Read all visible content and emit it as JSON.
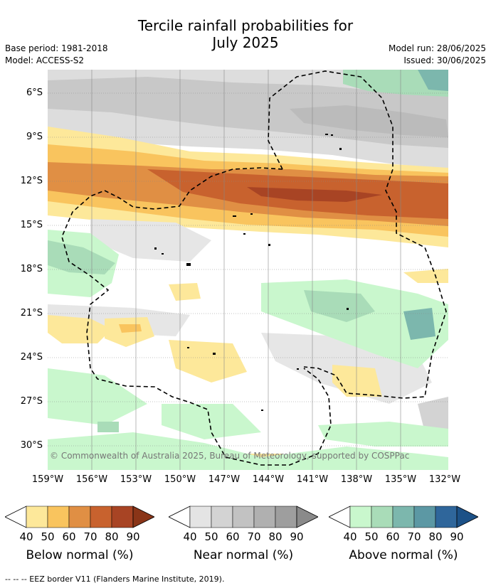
{
  "title_line1": "Tercile rainfall probabilities for",
  "title_line2": "July 2025",
  "meta_left": {
    "base_period": "Base period: 1981-2018",
    "model": "Model: ACCESS-S2"
  },
  "meta_right": {
    "model_run": "Model run: 28/06/2025",
    "issued": "Issued: 30/06/2025"
  },
  "lat_labels": [
    "6°S",
    "9°S",
    "12°S",
    "15°S",
    "18°S",
    "21°S",
    "24°S",
    "27°S",
    "30°S"
  ],
  "lon_labels": [
    "159°W",
    "156°W",
    "153°W",
    "150°W",
    "147°W",
    "144°W",
    "141°W",
    "138°W",
    "135°W",
    "132°W"
  ],
  "copyright": "© Commonwealth of Australia 2025, Bureau of Meteorology, supported by COSPPac",
  "colorbars": [
    {
      "name": "below",
      "title": "Below normal (%)",
      "ticks": [
        "40",
        "50",
        "60",
        "70",
        "80",
        "90"
      ],
      "colors": [
        "#fde89a",
        "#f9c45e",
        "#e08f44",
        "#c8622e",
        "#a84424",
        "#8a3518"
      ]
    },
    {
      "name": "near",
      "title": "Near normal (%)",
      "ticks": [
        "40",
        "50",
        "60",
        "70",
        "80",
        "90"
      ],
      "colors": [
        "#e4e4e4",
        "#d3d3d3",
        "#c2c2c2",
        "#b0b0b0",
        "#9e9e9e",
        "#8a8a8a"
      ]
    },
    {
      "name": "above",
      "title": "Above normal (%)",
      "ticks": [
        "40",
        "50",
        "60",
        "70",
        "80",
        "90"
      ],
      "colors": [
        "#c9f7cd",
        "#a9dcb8",
        "#7cb7ad",
        "#5c98a4",
        "#2f669b",
        "#1c5187"
      ]
    }
  ],
  "footer": "--  --  -- EEZ border V11 (Flanders Marine Institute, 2019)."
}
